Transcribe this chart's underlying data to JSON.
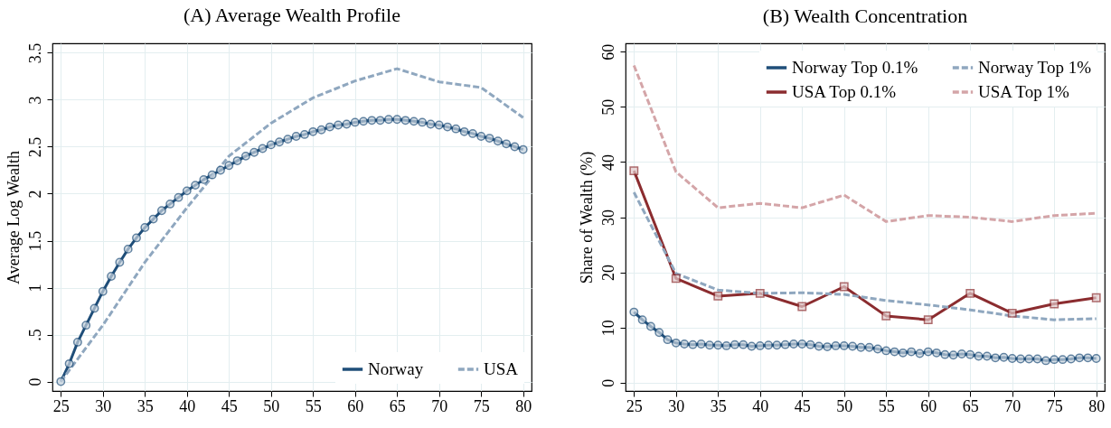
{
  "chart_data": [
    {
      "type": "line",
      "title": "(A) Average Wealth Profile",
      "ylabel": "Average Log Wealth",
      "xlim": [
        24,
        81
      ],
      "xticks": [
        25,
        30,
        35,
        40,
        45,
        50,
        55,
        60,
        65,
        70,
        75,
        80
      ],
      "ylim": [
        -0.1,
        3.6
      ],
      "yticks": [
        0,
        {
          "value": 0.5,
          "label": ".5"
        },
        1,
        1.5,
        2,
        2.5,
        3,
        3.5
      ],
      "grid": true,
      "legend": "bottom right",
      "series": [
        {
          "name": "Norway",
          "color": "#1f4e79",
          "marker": "circle",
          "line_style": "solid",
          "x": [
            25,
            26,
            27,
            28,
            29,
            30,
            31,
            32,
            33,
            34,
            35,
            36,
            37,
            38,
            39,
            40,
            41,
            42,
            43,
            44,
            45,
            46,
            47,
            48,
            49,
            50,
            51,
            52,
            53,
            54,
            55,
            56,
            57,
            58,
            59,
            60,
            61,
            62,
            63,
            64,
            65,
            66,
            67,
            68,
            69,
            70,
            71,
            72,
            73,
            74,
            75,
            76,
            77,
            78,
            79,
            80
          ],
          "values": [
            0,
            0.19,
            0.42,
            0.6,
            0.78,
            0.96,
            1.12,
            1.27,
            1.41,
            1.53,
            1.64,
            1.73,
            1.82,
            1.89,
            1.96,
            2.03,
            2.09,
            2.15,
            2.2,
            2.25,
            2.3,
            2.35,
            2.4,
            2.44,
            2.48,
            2.52,
            2.55,
            2.58,
            2.61,
            2.63,
            2.66,
            2.68,
            2.71,
            2.73,
            2.74,
            2.76,
            2.77,
            2.78,
            2.78,
            2.79,
            2.79,
            2.78,
            2.77,
            2.76,
            2.74,
            2.73,
            2.71,
            2.69,
            2.66,
            2.64,
            2.61,
            2.59,
            2.56,
            2.53,
            2.5,
            2.47
          ]
        },
        {
          "name": "USA",
          "color": "#8fa7bf",
          "marker": "none",
          "line_style": "dashed",
          "x": [
            25,
            30,
            35,
            40,
            45,
            50,
            55,
            60,
            65,
            70,
            75,
            80
          ],
          "values": [
            0,
            0.6,
            1.27,
            1.85,
            2.4,
            2.75,
            3.02,
            3.2,
            3.33,
            3.19,
            3.13,
            2.81
          ]
        }
      ]
    },
    {
      "type": "line",
      "title": "(B) Wealth Concentration",
      "ylabel": "Share of Wealth (%)",
      "xlim": [
        24,
        81
      ],
      "xticks": [
        25,
        30,
        35,
        40,
        45,
        50,
        55,
        60,
        65,
        70,
        75,
        80
      ],
      "ylim": [
        -1.5,
        61.5
      ],
      "yticks": [
        0,
        10,
        20,
        30,
        40,
        50,
        60
      ],
      "grid": true,
      "legend": "top right",
      "series": [
        {
          "name": "Norway Top 0.1%",
          "color": "#1f4e79",
          "marker": "circle",
          "line_style": "solid",
          "x": [
            25,
            26,
            27,
            28,
            29,
            30,
            31,
            32,
            33,
            34,
            35,
            36,
            37,
            38,
            39,
            40,
            41,
            42,
            43,
            44,
            45,
            46,
            47,
            48,
            49,
            50,
            51,
            52,
            53,
            54,
            55,
            56,
            57,
            58,
            59,
            60,
            61,
            62,
            63,
            64,
            65,
            66,
            67,
            68,
            69,
            70,
            71,
            72,
            73,
            74,
            75,
            76,
            77,
            78,
            79,
            80
          ],
          "values": [
            12.8,
            11.4,
            10.2,
            9.1,
            7.8,
            7.2,
            7.0,
            6.9,
            7.0,
            6.8,
            6.8,
            6.7,
            6.9,
            6.9,
            6.6,
            6.7,
            6.8,
            6.8,
            6.9,
            7.0,
            7.0,
            6.9,
            6.6,
            6.5,
            6.7,
            6.7,
            6.6,
            6.4,
            6.4,
            6.1,
            5.8,
            5.6,
            5.4,
            5.6,
            5.3,
            5.6,
            5.4,
            5.1,
            5.0,
            5.2,
            5.1,
            4.8,
            4.8,
            4.5,
            4.6,
            4.4,
            4.3,
            4.3,
            4.3,
            4.0,
            4.2,
            4.2,
            4.3,
            4.5,
            4.5,
            4.4
          ]
        },
        {
          "name": "USA Top 0.1%",
          "color": "#8b2c2f",
          "marker": "square",
          "line_style": "solid",
          "x": [
            25,
            30,
            35,
            40,
            45,
            50,
            55,
            60,
            65,
            70,
            75,
            80
          ],
          "values": [
            38.4,
            18.9,
            15.7,
            16.2,
            13.8,
            17.4,
            12.1,
            11.4,
            16.2,
            12.6,
            14.3,
            15.4
          ]
        },
        {
          "name": "Norway Top 1%",
          "color": "#8fa7bf",
          "marker": "none",
          "line_style": "dashed",
          "x": [
            25,
            30,
            35,
            40,
            45,
            50,
            55,
            60,
            65,
            70,
            75,
            80
          ],
          "values": [
            34.5,
            19.8,
            16.8,
            16.2,
            16.3,
            16.0,
            14.9,
            14.1,
            13.2,
            12.1,
            11.4,
            11.6
          ]
        },
        {
          "name": "USA Top 1%",
          "color": "#d4a5a8",
          "marker": "none",
          "line_style": "dashed",
          "x": [
            25,
            30,
            35,
            40,
            45,
            50,
            55,
            60,
            65,
            70,
            75,
            80
          ],
          "values": [
            57.5,
            38.2,
            31.7,
            32.5,
            31.7,
            34.0,
            29.2,
            30.3,
            30.0,
            29.2,
            30.3,
            30.7
          ]
        }
      ]
    }
  ]
}
